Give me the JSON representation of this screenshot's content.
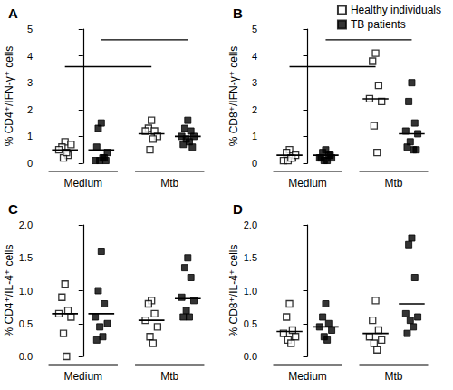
{
  "chart_data": [
    {
      "type": "scatter",
      "title": "A",
      "ylabel": "% CD4⁺/IFN-γ⁺ cells",
      "categories": [
        "Medium",
        "Mtb"
      ],
      "ylim": [
        0,
        5
      ],
      "yticks": [
        0,
        1,
        2,
        3,
        4,
        5
      ],
      "grid": false,
      "series": [
        {
          "name": "Healthy individuals",
          "color": "#000000",
          "marker": "square-open",
          "values": [
            [
              0.8,
              0.6,
              0.3,
              0.5,
              0.7,
              0.2,
              0.4
            ],
            [
              1.6,
              1.3,
              1.2,
              1.2,
              1.0,
              0.5,
              0.9
            ]
          ],
          "means": [
            0.5,
            1.1
          ]
        },
        {
          "name": "TB patients",
          "color": "#000000",
          "marker": "square",
          "values": [
            [
              1.5,
              1.3,
              0.2,
              0.1,
              0.4,
              0.1,
              0.2,
              0.6,
              0.1
            ],
            [
              1.6,
              1.3,
              1.2,
              1.0,
              1.0,
              0.9,
              0.8,
              0.7,
              0.6
            ]
          ],
          "means": [
            0.5,
            1.0
          ]
        }
      ],
      "significance": [
        {
          "from": {
            "category": "Medium",
            "series": "Healthy individuals"
          },
          "to": {
            "category": "Mtb",
            "series": "Healthy individuals"
          },
          "y": 3.6
        },
        {
          "from": {
            "category": "Medium",
            "series": "TB patients"
          },
          "to": {
            "category": "Mtb",
            "series": "TB patients"
          },
          "y": 4.6
        }
      ]
    },
    {
      "type": "scatter",
      "title": "B",
      "ylabel": "% CD8⁺/IFN-γ⁺ cells",
      "categories": [
        "Medium",
        "Mtb"
      ],
      "ylim": [
        0,
        5
      ],
      "yticks": [
        0,
        1,
        2,
        3,
        4,
        5
      ],
      "grid": false,
      "legend": "upper right",
      "series": [
        {
          "name": "Healthy individuals",
          "color": "#000000",
          "marker": "square-open",
          "values": [
            [
              0.5,
              0.4,
              0.2,
              0.1,
              0.3,
              0.1,
              0.2
            ],
            [
              4.1,
              3.8,
              2.9,
              2.4,
              2.3,
              1.4,
              0.4
            ]
          ],
          "means": [
            0.3,
            2.4
          ]
        },
        {
          "name": "TB patients",
          "color": "#000000",
          "marker": "square",
          "values": [
            [
              0.5,
              0.4,
              0.3,
              0.2,
              0.2,
              0.1,
              0.1,
              0.2,
              0.3
            ],
            [
              3.0,
              2.3,
              1.5,
              1.2,
              1.1,
              0.8,
              0.5,
              0.6,
              0.5
            ]
          ],
          "means": [
            0.3,
            1.1
          ]
        }
      ],
      "significance": [
        {
          "from": {
            "category": "Medium",
            "series": "Healthy individuals"
          },
          "to": {
            "category": "Mtb",
            "series": "Healthy individuals"
          },
          "y": 3.6
        },
        {
          "from": {
            "category": "Medium",
            "series": "TB patients"
          },
          "to": {
            "category": "Mtb",
            "series": "TB patients"
          },
          "y": 4.6
        }
      ]
    },
    {
      "type": "scatter",
      "title": "C",
      "ylabel": "% CD4⁺/IL-4⁺ cells",
      "categories": [
        "Medium",
        "Mtb"
      ],
      "ylim": [
        0,
        2
      ],
      "yticks": [
        {
          "value": 0,
          "label": "0.0"
        },
        0.5,
        {
          "value": 1,
          "label": "1.0"
        },
        1.5,
        {
          "value": 2,
          "label": "2.0"
        }
      ],
      "grid": false,
      "series": [
        {
          "name": "Healthy individuals",
          "color": "#000000",
          "marker": "square-open",
          "values": [
            [
              1.1,
              0.9,
              0.7,
              0.65,
              0.6,
              0.35,
              0.0
            ],
            [
              0.85,
              0.8,
              0.65,
              0.55,
              0.45,
              0.3,
              0.2
            ]
          ],
          "means": [
            0.65,
            0.55
          ]
        },
        {
          "name": "TB patients",
          "color": "#000000",
          "marker": "square",
          "values": [
            [
              1.6,
              1.0,
              0.8,
              0.6,
              0.5,
              0.45,
              0.3,
              0.25
            ],
            [
              1.5,
              1.35,
              1.2,
              0.9,
              0.85,
              0.7,
              0.6,
              0.6
            ]
          ],
          "means": [
            0.65,
            0.88
          ]
        }
      ]
    },
    {
      "type": "scatter",
      "title": "D",
      "ylabel": "% CD8⁺/IL-4⁺ cells",
      "categories": [
        "Medium",
        "Mtb"
      ],
      "ylim": [
        0,
        2
      ],
      "yticks": [
        {
          "value": 0,
          "label": "0.0"
        },
        0.5,
        {
          "value": 1,
          "label": "1.0"
        },
        1.5,
        {
          "value": 2,
          "label": "2.0"
        }
      ],
      "grid": false,
      "series": [
        {
          "name": "Healthy individuals",
          "color": "#000000",
          "marker": "square-open",
          "values": [
            [
              0.8,
              0.6,
              0.4,
              0.35,
              0.3,
              0.25,
              0.2
            ],
            [
              0.85,
              0.55,
              0.4,
              0.3,
              0.25,
              0.2,
              0.1
            ]
          ],
          "means": [
            0.38,
            0.35
          ]
        },
        {
          "name": "TB patients",
          "color": "#000000",
          "marker": "square",
          "values": [
            [
              0.8,
              0.6,
              0.5,
              0.45,
              0.4,
              0.3,
              0.25
            ],
            [
              1.8,
              1.7,
              1.2,
              0.65,
              0.6,
              0.55,
              0.45,
              0.35
            ]
          ],
          "means": [
            0.45,
            0.8
          ]
        }
      ]
    }
  ]
}
